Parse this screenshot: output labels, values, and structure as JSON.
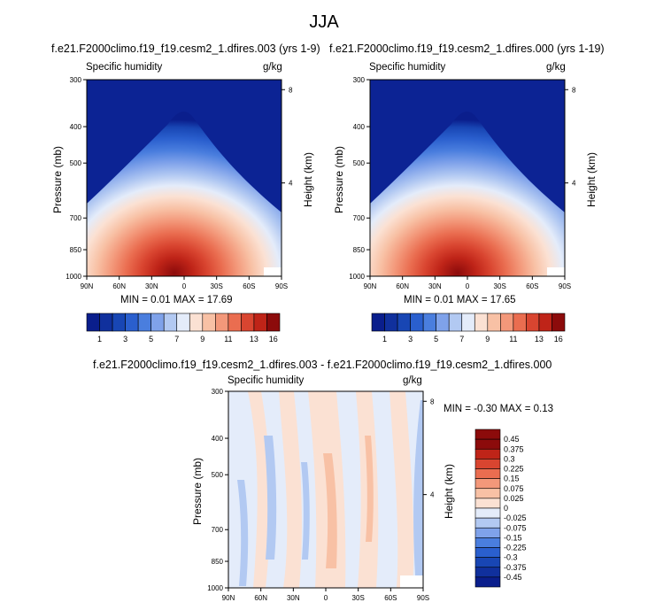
{
  "figure": {
    "title": "JJA"
  },
  "palettes": {
    "abs": [
      "#0a1e8c",
      "#10309d",
      "#1846b4",
      "#2a5fce",
      "#4a7ede",
      "#7fa2ea",
      "#b2c9f2",
      "#e4ecfa",
      "#fbe1d3",
      "#f8c1a5",
      "#f3987a",
      "#ea6d50",
      "#d94530",
      "#bf2418",
      "#8c0b0b"
    ],
    "diff": [
      "#0a1e8c",
      "#10309d",
      "#1846b4",
      "#2a5fce",
      "#4a7ede",
      "#7fa2ea",
      "#b2c9f2",
      "#e4ecfa",
      "#fbe1d3",
      "#f8c1a5",
      "#f3987a",
      "#ea6d50",
      "#d94530",
      "#bf2418",
      "#8c0b0b"
    ]
  },
  "panels": [
    {
      "title": "f.e21.F2000climo.f19_f19.cesm2_1.dfires.003 (yrs 1-9)",
      "variable": "Specific humidity",
      "units": "g/kg",
      "stats": "MIN =  0.01  MAX =  17.69",
      "ylabel": "Pressure (mb)",
      "ylabel_right": "Height (km)",
      "pressure_ticks": [
        "300",
        "400",
        "500",
        "700",
        "850",
        "1000"
      ],
      "height_ticks": [
        "8",
        "4"
      ],
      "lat_ticks": [
        "90N",
        "60N",
        "30N",
        "0",
        "30S",
        "60S",
        "90S"
      ],
      "colorbar_labels": [
        "1",
        "3",
        "5",
        "7",
        "9",
        "11",
        "13",
        "16"
      ]
    },
    {
      "title": "f.e21.F2000climo.f19_f19.cesm2_1.dfires.000 (yrs 1-19)",
      "variable": "Specific humidity",
      "units": "g/kg",
      "stats": "MIN =  0.01  MAX =  17.65",
      "ylabel": "Pressure (mb)",
      "ylabel_right": "Height (km)",
      "pressure_ticks": [
        "300",
        "400",
        "500",
        "700",
        "850",
        "1000"
      ],
      "height_ticks": [
        "8",
        "4"
      ],
      "lat_ticks": [
        "90N",
        "60N",
        "30N",
        "0",
        "30S",
        "60S",
        "90S"
      ],
      "colorbar_labels": [
        "1",
        "3",
        "5",
        "7",
        "9",
        "11",
        "13",
        "16"
      ]
    },
    {
      "title": "f.e21.F2000climo.f19_f19.cesm2_1.dfires.003 - f.e21.F2000climo.f19_f19.cesm2_1.dfires.000",
      "variable": "Specific humidity",
      "units": "g/kg",
      "stats": "MIN = -0.30  MAX =  0.13",
      "ylabel": "Pressure (mb)",
      "ylabel_right": "Height (km)",
      "pressure_ticks": [
        "300",
        "400",
        "500",
        "700",
        "850",
        "1000"
      ],
      "height_ticks": [
        "8",
        "4"
      ],
      "lat_ticks": [
        "90N",
        "60N",
        "30N",
        "0",
        "30S",
        "60S",
        "90S"
      ],
      "colorbar_labels": [
        "0.45",
        "0.375",
        "0.3",
        "0.225",
        "0.15",
        "0.075",
        "0.025",
        "0",
        "-0.025",
        "-0.075",
        "-0.15",
        "-0.225",
        "-0.3",
        "-0.375",
        "-0.45"
      ]
    }
  ],
  "chart_data": [
    {
      "type": "heatmap",
      "title": "f.e21.F2000climo.f19_f19.cesm2_1.dfires.003 (yrs 1-9)",
      "variable": "Specific humidity",
      "units": "g/kg",
      "xlabel": "",
      "ylabel": "Pressure (mb)",
      "y2label": "Height (km)",
      "x_ticks": [
        "90N",
        "60N",
        "30N",
        "0",
        "30S",
        "60S",
        "90S"
      ],
      "y_ticks": [
        300,
        400,
        500,
        700,
        850,
        1000
      ],
      "y2_ticks": [
        8,
        4
      ],
      "ylim": [
        1000,
        300
      ],
      "levels": [
        1,
        3,
        5,
        7,
        9,
        11,
        13,
        16
      ],
      "min": 0.01,
      "max": 17.69,
      "peak_location": {
        "lat": 10,
        "pressure": 1000
      }
    },
    {
      "type": "heatmap",
      "title": "f.e21.F2000climo.f19_f19.cesm2_1.dfires.000 (yrs 1-19)",
      "variable": "Specific humidity",
      "units": "g/kg",
      "xlabel": "",
      "ylabel": "Pressure (mb)",
      "y2label": "Height (km)",
      "x_ticks": [
        "90N",
        "60N",
        "30N",
        "0",
        "30S",
        "60S",
        "90S"
      ],
      "y_ticks": [
        300,
        400,
        500,
        700,
        850,
        1000
      ],
      "y2_ticks": [
        8,
        4
      ],
      "ylim": [
        1000,
        300
      ],
      "levels": [
        1,
        3,
        5,
        7,
        9,
        11,
        13,
        16
      ],
      "min": 0.01,
      "max": 17.65,
      "peak_location": {
        "lat": 10,
        "pressure": 1000
      }
    },
    {
      "type": "heatmap",
      "title": "f.e21.F2000climo.f19_f19.cesm2_1.dfires.003 - f.e21.F2000climo.f19_f19.cesm2_1.dfires.000",
      "variable": "Specific humidity",
      "units": "g/kg",
      "xlabel": "",
      "ylabel": "Pressure (mb)",
      "y2label": "Height (km)",
      "x_ticks": [
        "90N",
        "60N",
        "30N",
        "0",
        "30S",
        "60S",
        "90S"
      ],
      "y_ticks": [
        300,
        400,
        500,
        700,
        850,
        1000
      ],
      "y2_ticks": [
        8,
        4
      ],
      "ylim": [
        1000,
        300
      ],
      "levels": [
        -0.45,
        -0.375,
        -0.3,
        -0.225,
        -0.15,
        -0.075,
        -0.025,
        0,
        0.025,
        0.075,
        0.15,
        0.225,
        0.3,
        0.375,
        0.45
      ],
      "min": -0.3,
      "max": 0.13
    }
  ]
}
